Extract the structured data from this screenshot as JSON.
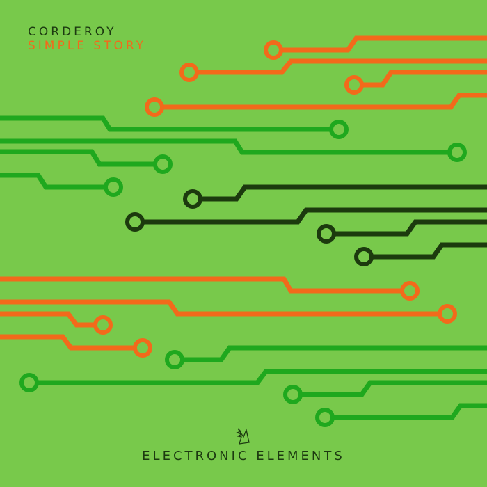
{
  "cover": {
    "artist": "CORDEROY",
    "title": "SIMPLE STORY",
    "label": "ELECTRONIC ELEMENTS",
    "logo_icon": "armada-wing-logo-icon"
  },
  "colors": {
    "background": "#78c94b",
    "orange": "#f26a1b",
    "green": "#1fa81e",
    "dark": "#1c3a0e"
  }
}
